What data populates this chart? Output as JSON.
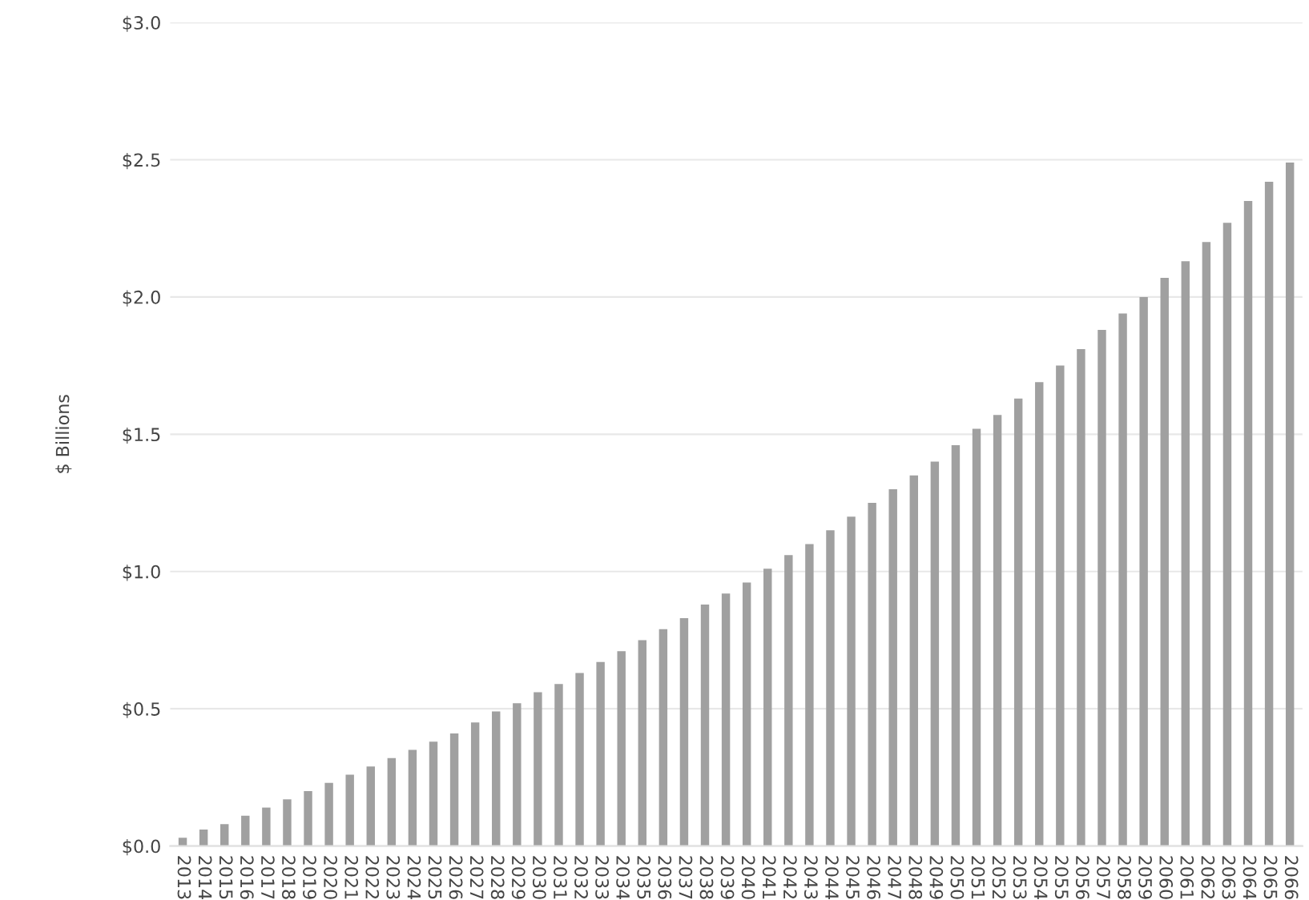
{
  "chart_data": {
    "type": "bar",
    "ylabel": "$ Billions",
    "categories": [
      "2013",
      "2014",
      "2015",
      "2016",
      "2017",
      "2018",
      "2019",
      "2020",
      "2021",
      "2022",
      "2023",
      "2024",
      "2025",
      "2026",
      "2027",
      "2028",
      "2029",
      "2030",
      "2031",
      "2032",
      "2033",
      "2034",
      "2035",
      "2036",
      "2037",
      "2038",
      "2039",
      "2040",
      "2041",
      "2042",
      "2043",
      "2044",
      "2045",
      "2046",
      "2047",
      "2048",
      "2049",
      "2050",
      "2051",
      "2052",
      "2053",
      "2054",
      "2055",
      "2056",
      "2057",
      "2058",
      "2059",
      "2060",
      "2061",
      "2062",
      "2063",
      "2064",
      "2065",
      "2066"
    ],
    "values": [
      0.03,
      0.06,
      0.08,
      0.11,
      0.14,
      0.17,
      0.2,
      0.23,
      0.26,
      0.29,
      0.32,
      0.35,
      0.38,
      0.41,
      0.45,
      0.49,
      0.52,
      0.56,
      0.59,
      0.63,
      0.67,
      0.71,
      0.75,
      0.79,
      0.83,
      0.88,
      0.92,
      0.96,
      1.01,
      1.06,
      1.1,
      1.15,
      1.2,
      1.25,
      1.3,
      1.35,
      1.4,
      1.46,
      1.52,
      1.57,
      1.63,
      1.69,
      1.75,
      1.81,
      1.88,
      1.94,
      2.0,
      2.07,
      2.13,
      2.2,
      2.27,
      2.35,
      2.42,
      2.49
    ],
    "color": "#a0a0a0",
    "ylim": [
      0,
      3.0
    ],
    "yticks": [
      {
        "value": 0,
        "label": "$0.0"
      },
      {
        "value": 0.5,
        "label": "$0.5"
      },
      {
        "value": 1.0,
        "label": "$1.0"
      },
      {
        "value": 1.5,
        "label": "$1.5"
      },
      {
        "value": 2.0,
        "label": "$2.0"
      },
      {
        "value": 2.5,
        "label": "$2.5"
      },
      {
        "value": 3.0,
        "label": "$3.0"
      }
    ],
    "grid": "y"
  }
}
